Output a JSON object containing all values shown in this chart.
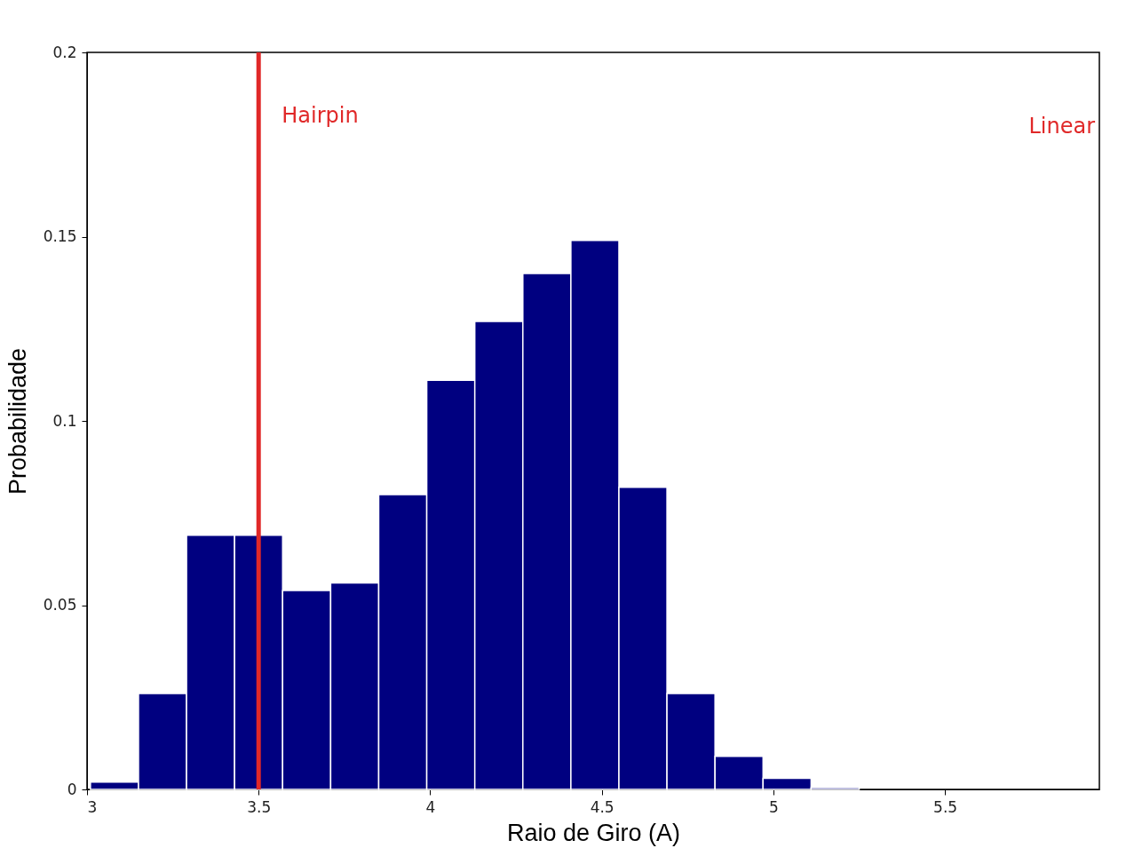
{
  "chart_data": {
    "type": "histogram",
    "xlabel": "Raio de Giro (A)",
    "ylabel": "Probabilidade",
    "bins": [
      3.01,
      3.15,
      3.29,
      3.43,
      3.57,
      3.71,
      3.85,
      3.99,
      4.13,
      4.27,
      4.41,
      4.55,
      4.69,
      4.83,
      4.97,
      5.11,
      5.25
    ],
    "values": [
      0.002,
      0.026,
      0.069,
      0.069,
      0.054,
      0.056,
      0.08,
      0.111,
      0.127,
      0.14,
      0.149,
      0.082,
      0.026,
      0.009,
      0.003,
      0.0005
    ],
    "color": "#000080",
    "xlim": [
      3,
      5.95
    ],
    "xticks": [
      3,
      3.5,
      4,
      4.5,
      5,
      5.5
    ],
    "ylim": [
      0,
      0.2
    ],
    "yticks": [
      0,
      0.05,
      0.1,
      0.15,
      0.2
    ],
    "grid": false,
    "ref_lines": [
      {
        "axis": "x",
        "value": 3.5,
        "label": "Hairpin",
        "color": "#e02828"
      }
    ],
    "annotations": [
      "Linear"
    ]
  }
}
